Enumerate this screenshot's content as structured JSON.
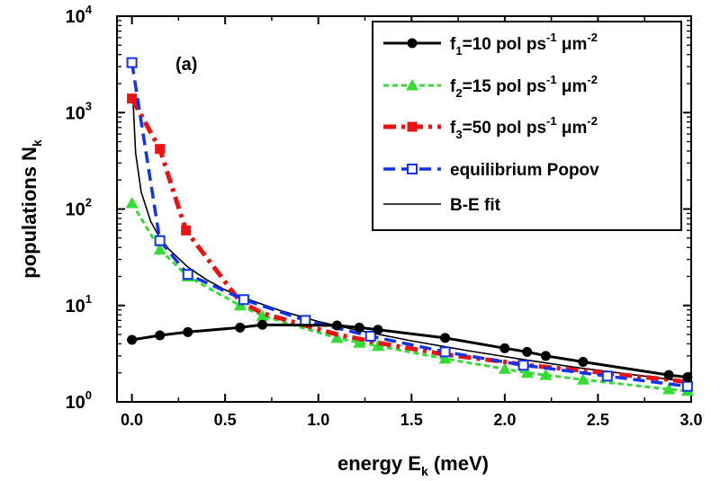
{
  "chart_data": {
    "type": "line",
    "panel_label": "(a)",
    "xlabel": {
      "main": "energy E",
      "sub": "k",
      "tail": " (meV)"
    },
    "ylabel": {
      "main": "populations N",
      "sub": "k"
    },
    "xlim": [
      -0.08,
      3.0
    ],
    "ylim": [
      1,
      10000
    ],
    "yscale": "log",
    "x_ticks": [
      0.0,
      0.5,
      1.0,
      1.5,
      2.0,
      2.5,
      3.0
    ],
    "x_tick_labels": [
      "0.0",
      "0.5",
      "1.0",
      "1.5",
      "2.0",
      "2.5",
      "3.0"
    ],
    "y_ticks": [
      1,
      10,
      100,
      1000,
      10000
    ],
    "y_tick_labels": [
      {
        "base": "10",
        "exp": "0"
      },
      {
        "base": "10",
        "exp": "1"
      },
      {
        "base": "10",
        "exp": "2"
      },
      {
        "base": "10",
        "exp": "3"
      },
      {
        "base": "10",
        "exp": "4"
      }
    ],
    "legend_position": "top-right",
    "series": [
      {
        "name": "f1=10 pol ps-1 μm-2",
        "legend_parts": [
          "f",
          "1",
          "=10 pol ps",
          "-1",
          " μm",
          "-2"
        ],
        "color": "#000000",
        "marker": "circle-filled",
        "line": "solid",
        "x": [
          0.0,
          0.15,
          0.3,
          0.58,
          0.7,
          1.1,
          1.22,
          1.32,
          1.68,
          2.0,
          2.12,
          2.22,
          2.42,
          2.88,
          2.98
        ],
        "y": [
          4.4,
          4.9,
          5.3,
          5.9,
          6.3,
          6.2,
          5.9,
          5.6,
          4.6,
          3.6,
          3.3,
          3.0,
          2.6,
          1.9,
          1.8
        ]
      },
      {
        "name": "f2=15 pol ps-1 μm-2",
        "legend_parts": [
          "f",
          "2",
          "=15 pol ps",
          "-1",
          " μm",
          "-2"
        ],
        "color": "#33dd33",
        "marker": "triangle-filled",
        "line": "dotted",
        "x": [
          0.0,
          0.15,
          0.3,
          0.58,
          0.7,
          1.1,
          1.22,
          1.32,
          1.68,
          2.0,
          2.12,
          2.22,
          2.42,
          2.88,
          2.98
        ],
        "y": [
          115,
          38,
          20,
          10,
          7.8,
          4.6,
          4.1,
          3.8,
          2.8,
          2.2,
          2.0,
          1.9,
          1.7,
          1.35,
          1.3
        ]
      },
      {
        "name": "f3=50 pol ps-1 μm-2",
        "legend_parts": [
          "f",
          "3",
          "=50 pol ps",
          "-1",
          " μm",
          "-2"
        ],
        "color": "#ee1111",
        "marker": "square-filled",
        "line": "dashdot",
        "x": [
          0.0,
          0.15,
          0.29
        ],
        "y": [
          1400,
          420,
          60
        ],
        "line_x": [
          0.0,
          0.15,
          0.29,
          0.58,
          0.7,
          1.1,
          1.22,
          1.32,
          1.68,
          2.0,
          2.12,
          2.22,
          2.42,
          2.88,
          2.98
        ],
        "line_y": [
          1400,
          420,
          60,
          11,
          8.3,
          5.0,
          4.5,
          4.1,
          3.1,
          2.6,
          2.4,
          2.3,
          2.1,
          1.7,
          1.6
        ]
      },
      {
        "name": "equilibrium Popov",
        "legend_parts": [
          "equilibrium Popov"
        ],
        "color": "#1133ee",
        "marker": "square-open",
        "line": "dashed",
        "x": [
          0.0,
          0.15,
          0.3,
          0.6,
          0.93,
          1.28,
          1.68,
          2.1,
          2.55,
          2.98
        ],
        "y": [
          3300,
          47,
          21,
          11.5,
          7.0,
          4.8,
          3.3,
          2.4,
          1.85,
          1.45
        ]
      },
      {
        "name": "B-E fit",
        "legend_parts": [
          "B-E fit"
        ],
        "color": "#000000",
        "marker": "none",
        "line": "thin",
        "x": [
          0.005,
          0.02,
          0.05,
          0.1,
          0.15,
          0.2,
          0.3,
          0.4,
          0.5,
          0.6,
          0.8,
          1.0,
          1.2,
          1.5,
          1.8,
          2.1,
          2.4,
          2.7,
          3.0
        ],
        "y": [
          1500,
          380,
          150,
          75,
          50,
          38,
          25,
          18.5,
          14.5,
          12,
          8.8,
          6.8,
          5.6,
          4.3,
          3.4,
          2.75,
          2.25,
          1.9,
          1.6
        ]
      }
    ]
  }
}
